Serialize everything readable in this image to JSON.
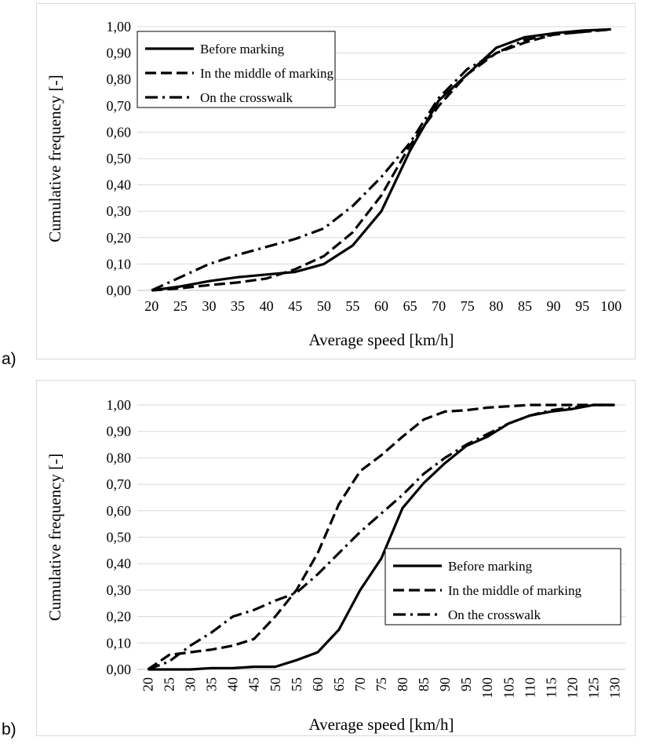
{
  "panels": [
    {
      "label": "a)",
      "chart_data": {
        "type": "line",
        "xlabel": "Average speed [km/h]",
        "ylabel": "Cumulative frequency [-]",
        "x": [
          20,
          25,
          30,
          35,
          40,
          45,
          50,
          55,
          60,
          65,
          70,
          75,
          80,
          85,
          90,
          95,
          100
        ],
        "x_tick_labels": [
          "20",
          "25",
          "30",
          "35",
          "40",
          "45",
          "50",
          "55",
          "60",
          "65",
          "70",
          "75",
          "80",
          "85",
          "90",
          "95",
          "100"
        ],
        "y_tick_labels": [
          "0,00",
          "0,10",
          "0,20",
          "0,30",
          "0,40",
          "0,50",
          "0,60",
          "0,70",
          "0,80",
          "0,90",
          "1,00"
        ],
        "ylim": [
          0,
          1
        ],
        "grid": true,
        "legend_position": "top-left",
        "series": [
          {
            "name": "Before marking",
            "style": "solid",
            "values": [
              0,
              0.015,
              0.035,
              0.05,
              0.06,
              0.07,
              0.1,
              0.17,
              0.3,
              0.53,
              0.72,
              0.82,
              0.92,
              0.96,
              0.975,
              0.985,
              0.99
            ]
          },
          {
            "name": "In the middle of marking",
            "style": "dashed",
            "values": [
              0,
              0.008,
              0.02,
              0.03,
              0.045,
              0.08,
              0.13,
              0.22,
              0.36,
              0.55,
              0.7,
              0.82,
              0.9,
              0.94,
              0.97,
              0.98,
              0.99
            ]
          },
          {
            "name": "On the crosswalk",
            "style": "dashdot",
            "values": [
              0,
              0.05,
              0.1,
              0.135,
              0.165,
              0.195,
              0.235,
              0.32,
              0.43,
              0.56,
              0.73,
              0.84,
              0.9,
              0.95,
              0.97,
              0.98,
              0.99
            ]
          }
        ]
      }
    },
    {
      "label": "b)",
      "chart_data": {
        "type": "line",
        "xlabel": "Average speed [km/h]",
        "ylabel": "Cumulative frequency [-]",
        "x": [
          20,
          25,
          30,
          35,
          40,
          45,
          50,
          55,
          60,
          65,
          70,
          75,
          80,
          85,
          90,
          95,
          100,
          105,
          110,
          115,
          120,
          125,
          130
        ],
        "x_tick_labels": [
          "20",
          "25",
          "30",
          "35",
          "40",
          "45",
          "50",
          "55",
          "60",
          "65",
          "70",
          "75",
          "80",
          "85",
          "90",
          "95",
          "100",
          "105",
          "110",
          "115",
          "120",
          "125",
          "130"
        ],
        "y_tick_labels": [
          "0,00",
          "0,10",
          "0,20",
          "0,30",
          "0,40",
          "0,50",
          "0,60",
          "0,70",
          "0,80",
          "0,90",
          "1,00"
        ],
        "ylim": [
          0,
          1
        ],
        "grid": true,
        "legend_position": "bottom-right",
        "series": [
          {
            "name": "Before marking",
            "style": "solid",
            "values": [
              0,
              0,
              0,
              0.005,
              0.005,
              0.01,
              0.01,
              0.035,
              0.065,
              0.15,
              0.3,
              0.42,
              0.61,
              0.705,
              0.78,
              0.845,
              0.88,
              0.93,
              0.96,
              0.975,
              0.985,
              1.0,
              1.0
            ]
          },
          {
            "name": "In the middle of marking",
            "style": "dashed",
            "values": [
              0,
              0.055,
              0.065,
              0.075,
              0.09,
              0.115,
              0.2,
              0.3,
              0.44,
              0.625,
              0.75,
              0.81,
              0.88,
              0.945,
              0.975,
              0.98,
              0.99,
              0.995,
              1.0,
              1.0,
              1.0,
              1.0,
              1.0
            ]
          },
          {
            "name": "On the crosswalk",
            "style": "dashdot",
            "values": [
              0,
              0.03,
              0.09,
              0.14,
              0.2,
              0.225,
              0.26,
              0.29,
              0.36,
              0.44,
              0.52,
              0.59,
              0.66,
              0.74,
              0.8,
              0.85,
              0.89,
              0.93,
              0.96,
              0.98,
              0.99,
              1.0,
              1.0
            ]
          }
        ]
      }
    }
  ]
}
